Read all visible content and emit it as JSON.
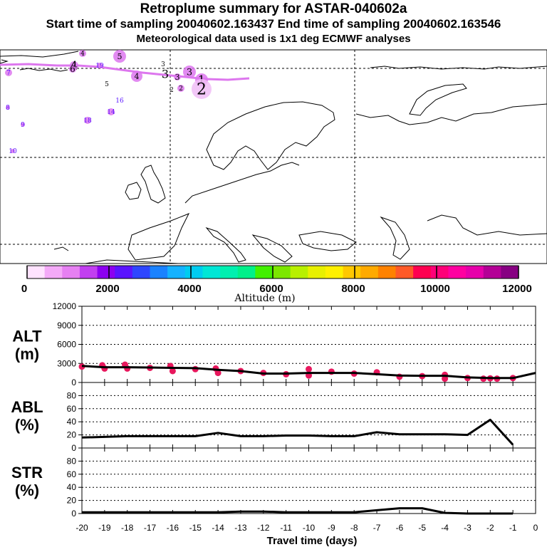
{
  "header": {
    "title": "Retroplume summary for ASTAR-040602a",
    "sampling_line": "Start time of sampling 20040602.163437     End time of sampling 20040602.163546",
    "met_line": "Meteorological data used is 1x1 deg ECMWF analyses"
  },
  "colors": {
    "plume": "#dd77ee",
    "plume_light": "#f0bdf6",
    "alt_points": "#e8175d",
    "line": "#000000"
  },
  "map": {
    "plume_labels": [
      {
        "label": "1"
      },
      {
        "label": "2"
      },
      {
        "label": "2"
      },
      {
        "label": "2"
      },
      {
        "label": "3"
      },
      {
        "label": "3"
      },
      {
        "label": "3"
      },
      {
        "label": "3"
      },
      {
        "label": "4"
      },
      {
        "label": "4"
      },
      {
        "label": "4"
      },
      {
        "label": "5"
      },
      {
        "label": "5"
      },
      {
        "label": "6"
      },
      {
        "label": "7"
      },
      {
        "label": "8"
      },
      {
        "label": "9"
      },
      {
        "label": "10"
      },
      {
        "label": "14"
      },
      {
        "label": "16"
      },
      {
        "label": "18"
      },
      {
        "label": "19"
      }
    ]
  },
  "colorbar": {
    "ticks": [
      "0",
      "2000",
      "4000",
      "6000",
      "8000",
      "10000",
      "12000"
    ],
    "label": "Altitude (m)",
    "colors": [
      "#ffe3ff",
      "#f4aaf8",
      "#e680f2",
      "#c23ff0",
      "#8c00f0",
      "#5a14ff",
      "#2e46ff",
      "#1a82ff",
      "#15b2ff",
      "#00ccf0",
      "#00e6d6",
      "#00f0b0",
      "#00f08a",
      "#42f000",
      "#7ce600",
      "#b8f000",
      "#e8f000",
      "#fff000",
      "#ffc800",
      "#ffaa00",
      "#ff8200",
      "#ff5a28",
      "#ff0050",
      "#ff0078",
      "#ff00a0",
      "#e600aa",
      "#b40096",
      "#870082"
    ]
  },
  "chart_data": [
    {
      "type": "line",
      "name": "ALT",
      "ylabel": "ALT\n(m)",
      "ylabel_lines": [
        "ALT",
        "(m)"
      ],
      "ylim": [
        0,
        12000
      ],
      "yticks": [
        "12000",
        "9000",
        "6000",
        "3000",
        "0"
      ],
      "x": [
        -20,
        -19,
        -18,
        -17,
        -16,
        -15,
        -14,
        -13,
        -12,
        -11,
        -10,
        -9,
        -8,
        -7,
        -6,
        -5,
        -4,
        -3,
        -2,
        -1,
        0
      ],
      "values": [
        2600,
        2400,
        2400,
        2350,
        2300,
        2250,
        2000,
        1800,
        1400,
        1400,
        1500,
        1500,
        1500,
        1300,
        1100,
        1050,
        1050,
        800,
        700,
        700,
        1500
      ],
      "points": [
        {
          "x": -20,
          "y": 2500
        },
        {
          "x": -19.1,
          "y": 2700
        },
        {
          "x": -19,
          "y": 2200
        },
        {
          "x": -18.1,
          "y": 2800
        },
        {
          "x": -18,
          "y": 2200
        },
        {
          "x": -17,
          "y": 2300
        },
        {
          "x": -16.1,
          "y": 2600
        },
        {
          "x": -16,
          "y": 1800
        },
        {
          "x": -15,
          "y": 2100
        },
        {
          "x": -14.1,
          "y": 2200
        },
        {
          "x": -14,
          "y": 1500
        },
        {
          "x": -13,
          "y": 1800
        },
        {
          "x": -12,
          "y": 1500
        },
        {
          "x": -11,
          "y": 1300
        },
        {
          "x": -10,
          "y": 2100
        },
        {
          "x": -10,
          "y": 1100
        },
        {
          "x": -9,
          "y": 1700
        },
        {
          "x": -8,
          "y": 1400
        },
        {
          "x": -7,
          "y": 1600
        },
        {
          "x": -6,
          "y": 900
        },
        {
          "x": -5,
          "y": 1000
        },
        {
          "x": -4,
          "y": 1200
        },
        {
          "x": -4,
          "y": 600
        },
        {
          "x": -3,
          "y": 700
        },
        {
          "x": -2.3,
          "y": 600
        },
        {
          "x": -2,
          "y": 650
        },
        {
          "x": -1.7,
          "y": 600
        },
        {
          "x": -1,
          "y": 700
        }
      ]
    },
    {
      "type": "line",
      "name": "ABL",
      "ylabel_lines": [
        "ABL",
        "(%)"
      ],
      "ylim": [
        0,
        100
      ],
      "yticks": [
        "80",
        "60",
        "40",
        "20",
        "0"
      ],
      "x": [
        -20,
        -19,
        -18,
        -17,
        -16,
        -15,
        -14,
        -13,
        -12,
        -11,
        -10,
        -9,
        -8,
        -7,
        -6,
        -5,
        -4,
        -3,
        -2,
        -1
      ],
      "values": [
        16,
        17,
        18,
        18,
        18,
        18,
        23,
        18,
        18,
        19,
        19,
        18,
        18,
        24,
        21,
        21,
        21,
        20,
        43,
        5
      ]
    },
    {
      "type": "line",
      "name": "STR",
      "ylabel_lines": [
        "STR",
        "(%)"
      ],
      "ylim": [
        0,
        100
      ],
      "yticks": [
        "80",
        "60",
        "40",
        "20",
        "0"
      ],
      "x": [
        -20,
        -19,
        -18,
        -17,
        -16,
        -15,
        -14,
        -13,
        -12,
        -11,
        -10,
        -9,
        -8,
        -7,
        -6,
        -5,
        -4,
        -3,
        -2,
        -1
      ],
      "values": [
        2,
        2,
        2,
        2,
        2,
        2,
        2,
        3,
        3,
        2,
        2,
        2,
        2,
        5,
        8,
        8,
        1,
        0,
        0,
        0
      ],
      "xlabel": "Travel time (days)",
      "xticks": [
        "-20",
        "-19",
        "-18",
        "-17",
        "-16",
        "-15",
        "-14",
        "-13",
        "-12",
        "-11",
        "-10",
        "-9",
        "-8",
        "-7",
        "-6",
        "-5",
        "-4",
        "-3",
        "-2",
        "-1",
        "0"
      ]
    }
  ]
}
